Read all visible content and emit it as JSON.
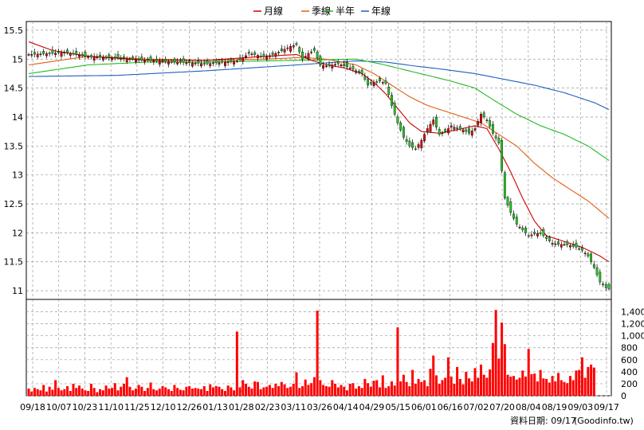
{
  "chart_data": {
    "type": "line",
    "legend": {
      "placement": "top-center",
      "items": [
        {
          "label": "月線",
          "color": "#cc0000"
        },
        {
          "label": "季線",
          "color": "#e06010"
        },
        {
          "label": "半年",
          "color": "#22bb22"
        },
        {
          "label": "年線",
          "color": "#1f5fbf"
        }
      ]
    },
    "price_axis": {
      "ticks": [
        15.5,
        15,
        14.5,
        14,
        13.5,
        13,
        12.5,
        12,
        11.5,
        11
      ],
      "ylim": [
        10.85,
        15.65
      ]
    },
    "volume_axis": {
      "ticks": [
        0,
        200,
        400,
        600,
        800,
        "1,000",
        "1,200",
        "1,400"
      ],
      "ylim": [
        0,
        1500
      ]
    },
    "x_labels": [
      "09/18",
      "10/07",
      "10/23",
      "11/10",
      "11/25",
      "12/10",
      "12/26",
      "01/13",
      "01/28",
      "02/23",
      "03/11",
      "03/26",
      "04/14",
      "04/29",
      "05/15",
      "06/01",
      "06/16",
      "07/02",
      "07/20",
      "08/04",
      "08/19",
      "09/03",
      "09/17"
    ],
    "grid": true,
    "footer": "資料日期: 09/17",
    "watermark": "(Goodinfo.tw)",
    "price_keys": [
      [
        0,
        15.08
      ],
      [
        8,
        15.1
      ],
      [
        12,
        15.12
      ],
      [
        20,
        15.04
      ],
      [
        30,
        15.02
      ],
      [
        40,
        14.98
      ],
      [
        50,
        14.95
      ],
      [
        60,
        14.92
      ],
      [
        70,
        14.97
      ],
      [
        72,
        15.02
      ],
      [
        74,
        15.1
      ],
      [
        76,
        15.08
      ],
      [
        78,
        15.05
      ],
      [
        80,
        15.04
      ],
      [
        84,
        15.12
      ],
      [
        88,
        15.22
      ],
      [
        90,
        15.25
      ],
      [
        92,
        15.0
      ],
      [
        94,
        15.1
      ],
      [
        96,
        15.15
      ],
      [
        98,
        14.9
      ],
      [
        100,
        14.88
      ],
      [
        104,
        14.92
      ],
      [
        108,
        14.85
      ],
      [
        112,
        14.75
      ],
      [
        114,
        14.55
      ],
      [
        116,
        14.6
      ],
      [
        118,
        14.62
      ],
      [
        120,
        14.58
      ],
      [
        122,
        14.2
      ],
      [
        124,
        13.9
      ],
      [
        126,
        13.65
      ],
      [
        128,
        13.5
      ],
      [
        130,
        13.45
      ],
      [
        132,
        13.6
      ],
      [
        134,
        13.8
      ],
      [
        136,
        13.95
      ],
      [
        138,
        13.7
      ],
      [
        140,
        13.75
      ],
      [
        142,
        13.85
      ],
      [
        144,
        13.8
      ],
      [
        146,
        13.78
      ],
      [
        148,
        13.72
      ],
      [
        150,
        13.8
      ],
      [
        152,
        14.05
      ],
      [
        154,
        13.95
      ],
      [
        156,
        13.72
      ],
      [
        158,
        13.55
      ],
      [
        160,
        12.6
      ],
      [
        162,
        12.35
      ],
      [
        164,
        12.15
      ],
      [
        166,
        12.05
      ],
      [
        168,
        11.95
      ],
      [
        170,
        11.98
      ],
      [
        172,
        12.0
      ],
      [
        174,
        11.9
      ],
      [
        176,
        11.82
      ],
      [
        178,
        11.8
      ],
      [
        180,
        11.8
      ],
      [
        182,
        11.78
      ],
      [
        184,
        11.75
      ],
      [
        186,
        11.7
      ],
      [
        188,
        11.6
      ],
      [
        190,
        11.4
      ],
      [
        192,
        11.15
      ],
      [
        194,
        11.05
      ],
      [
        195,
        11.03
      ]
    ],
    "ma_month_keys": [
      [
        0,
        15.3
      ],
      [
        8,
        15.15
      ],
      [
        20,
        15.05
      ],
      [
        40,
        14.98
      ],
      [
        60,
        14.98
      ],
      [
        80,
        15.05
      ],
      [
        90,
        15.08
      ],
      [
        95,
        14.98
      ],
      [
        100,
        14.9
      ],
      [
        106,
        14.85
      ],
      [
        112,
        14.75
      ],
      [
        116,
        14.6
      ],
      [
        120,
        14.4
      ],
      [
        124,
        14.15
      ],
      [
        128,
        13.9
      ],
      [
        132,
        13.75
      ],
      [
        138,
        13.72
      ],
      [
        144,
        13.78
      ],
      [
        150,
        13.85
      ],
      [
        154,
        13.8
      ],
      [
        158,
        13.45
      ],
      [
        162,
        13.05
      ],
      [
        166,
        12.6
      ],
      [
        170,
        12.2
      ],
      [
        174,
        11.95
      ],
      [
        180,
        11.85
      ],
      [
        186,
        11.75
      ],
      [
        192,
        11.6
      ],
      [
        195,
        11.5
      ]
    ],
    "ma_quarter_keys": [
      [
        0,
        14.9
      ],
      [
        20,
        15.05
      ],
      [
        40,
        15.0
      ],
      [
        60,
        14.98
      ],
      [
        80,
        15.0
      ],
      [
        92,
        15.03
      ],
      [
        100,
        15.0
      ],
      [
        110,
        14.9
      ],
      [
        116,
        14.75
      ],
      [
        122,
        14.55
      ],
      [
        128,
        14.35
      ],
      [
        134,
        14.2
      ],
      [
        140,
        14.1
      ],
      [
        146,
        14.0
      ],
      [
        152,
        13.9
      ],
      [
        158,
        13.7
      ],
      [
        164,
        13.5
      ],
      [
        170,
        13.2
      ],
      [
        176,
        12.95
      ],
      [
        182,
        12.75
      ],
      [
        188,
        12.55
      ],
      [
        195,
        12.25
      ]
    ],
    "ma_half_keys": [
      [
        0,
        14.75
      ],
      [
        20,
        14.9
      ],
      [
        40,
        14.95
      ],
      [
        60,
        14.95
      ],
      [
        80,
        14.97
      ],
      [
        100,
        14.99
      ],
      [
        110,
        15.0
      ],
      [
        118,
        14.92
      ],
      [
        126,
        14.82
      ],
      [
        134,
        14.72
      ],
      [
        142,
        14.62
      ],
      [
        150,
        14.5
      ],
      [
        156,
        14.3
      ],
      [
        164,
        14.05
      ],
      [
        172,
        13.85
      ],
      [
        180,
        13.7
      ],
      [
        188,
        13.5
      ],
      [
        195,
        13.25
      ]
    ],
    "ma_year_keys": [
      [
        0,
        14.7
      ],
      [
        30,
        14.72
      ],
      [
        60,
        14.8
      ],
      [
        90,
        14.9
      ],
      [
        110,
        14.97
      ],
      [
        120,
        14.95
      ],
      [
        130,
        14.88
      ],
      [
        140,
        14.82
      ],
      [
        150,
        14.75
      ],
      [
        160,
        14.65
      ],
      [
        170,
        14.55
      ],
      [
        180,
        14.42
      ],
      [
        190,
        14.25
      ],
      [
        195,
        14.13
      ]
    ],
    "volume": [
      120,
      70,
      130,
      110,
      90,
      180,
      70,
      150,
      100,
      260,
      130,
      90,
      110,
      160,
      80,
      200,
      130,
      170,
      120,
      90,
      80,
      200,
      130,
      60,
      110,
      90,
      170,
      120,
      130,
      210,
      90,
      150,
      200,
      310,
      150,
      90,
      120,
      180,
      150,
      80,
      130,
      220,
      110,
      90,
      120,
      160,
      140,
      110,
      80,
      180,
      130,
      100,
      90,
      150,
      160,
      120,
      130,
      120,
      110,
      160,
      80,
      190,
      140,
      160,
      150,
      110,
      80,
      170,
      140,
      90,
      1070,
      140,
      260,
      200,
      150,
      120,
      240,
      230,
      110,
      140,
      150,
      180,
      130,
      200,
      160,
      230,
      190,
      130,
      150,
      200,
      390,
      130,
      160,
      270,
      180,
      210,
      310,
      1420,
      260,
      180,
      160,
      150,
      260,
      200,
      140,
      180,
      150,
      90,
      200,
      210,
      120,
      160,
      130,
      280,
      210,
      150,
      250,
      260,
      140,
      340,
      130,
      160,
      240,
      170,
      1140,
      240,
      350,
      230,
      160,
      430,
      200,
      280,
      230,
      260,
      160,
      450,
      670,
      340,
      200,
      260,
      300,
      640,
      320,
      200,
      480,
      280,
      190,
      400,
      290,
      240,
      460,
      300,
      520,
      350,
      300,
      440,
      880,
      1430,
      620,
      1220,
      860,
      350,
      320,
      330,
      270,
      300,
      420,
      320,
      780,
      360,
      370,
      240,
      430,
      290,
      280,
      220,
      330,
      240,
      380,
      260,
      230,
      210,
      330,
      260,
      420,
      430,
      640,
      300,
      480,
      520,
      470
    ]
  }
}
